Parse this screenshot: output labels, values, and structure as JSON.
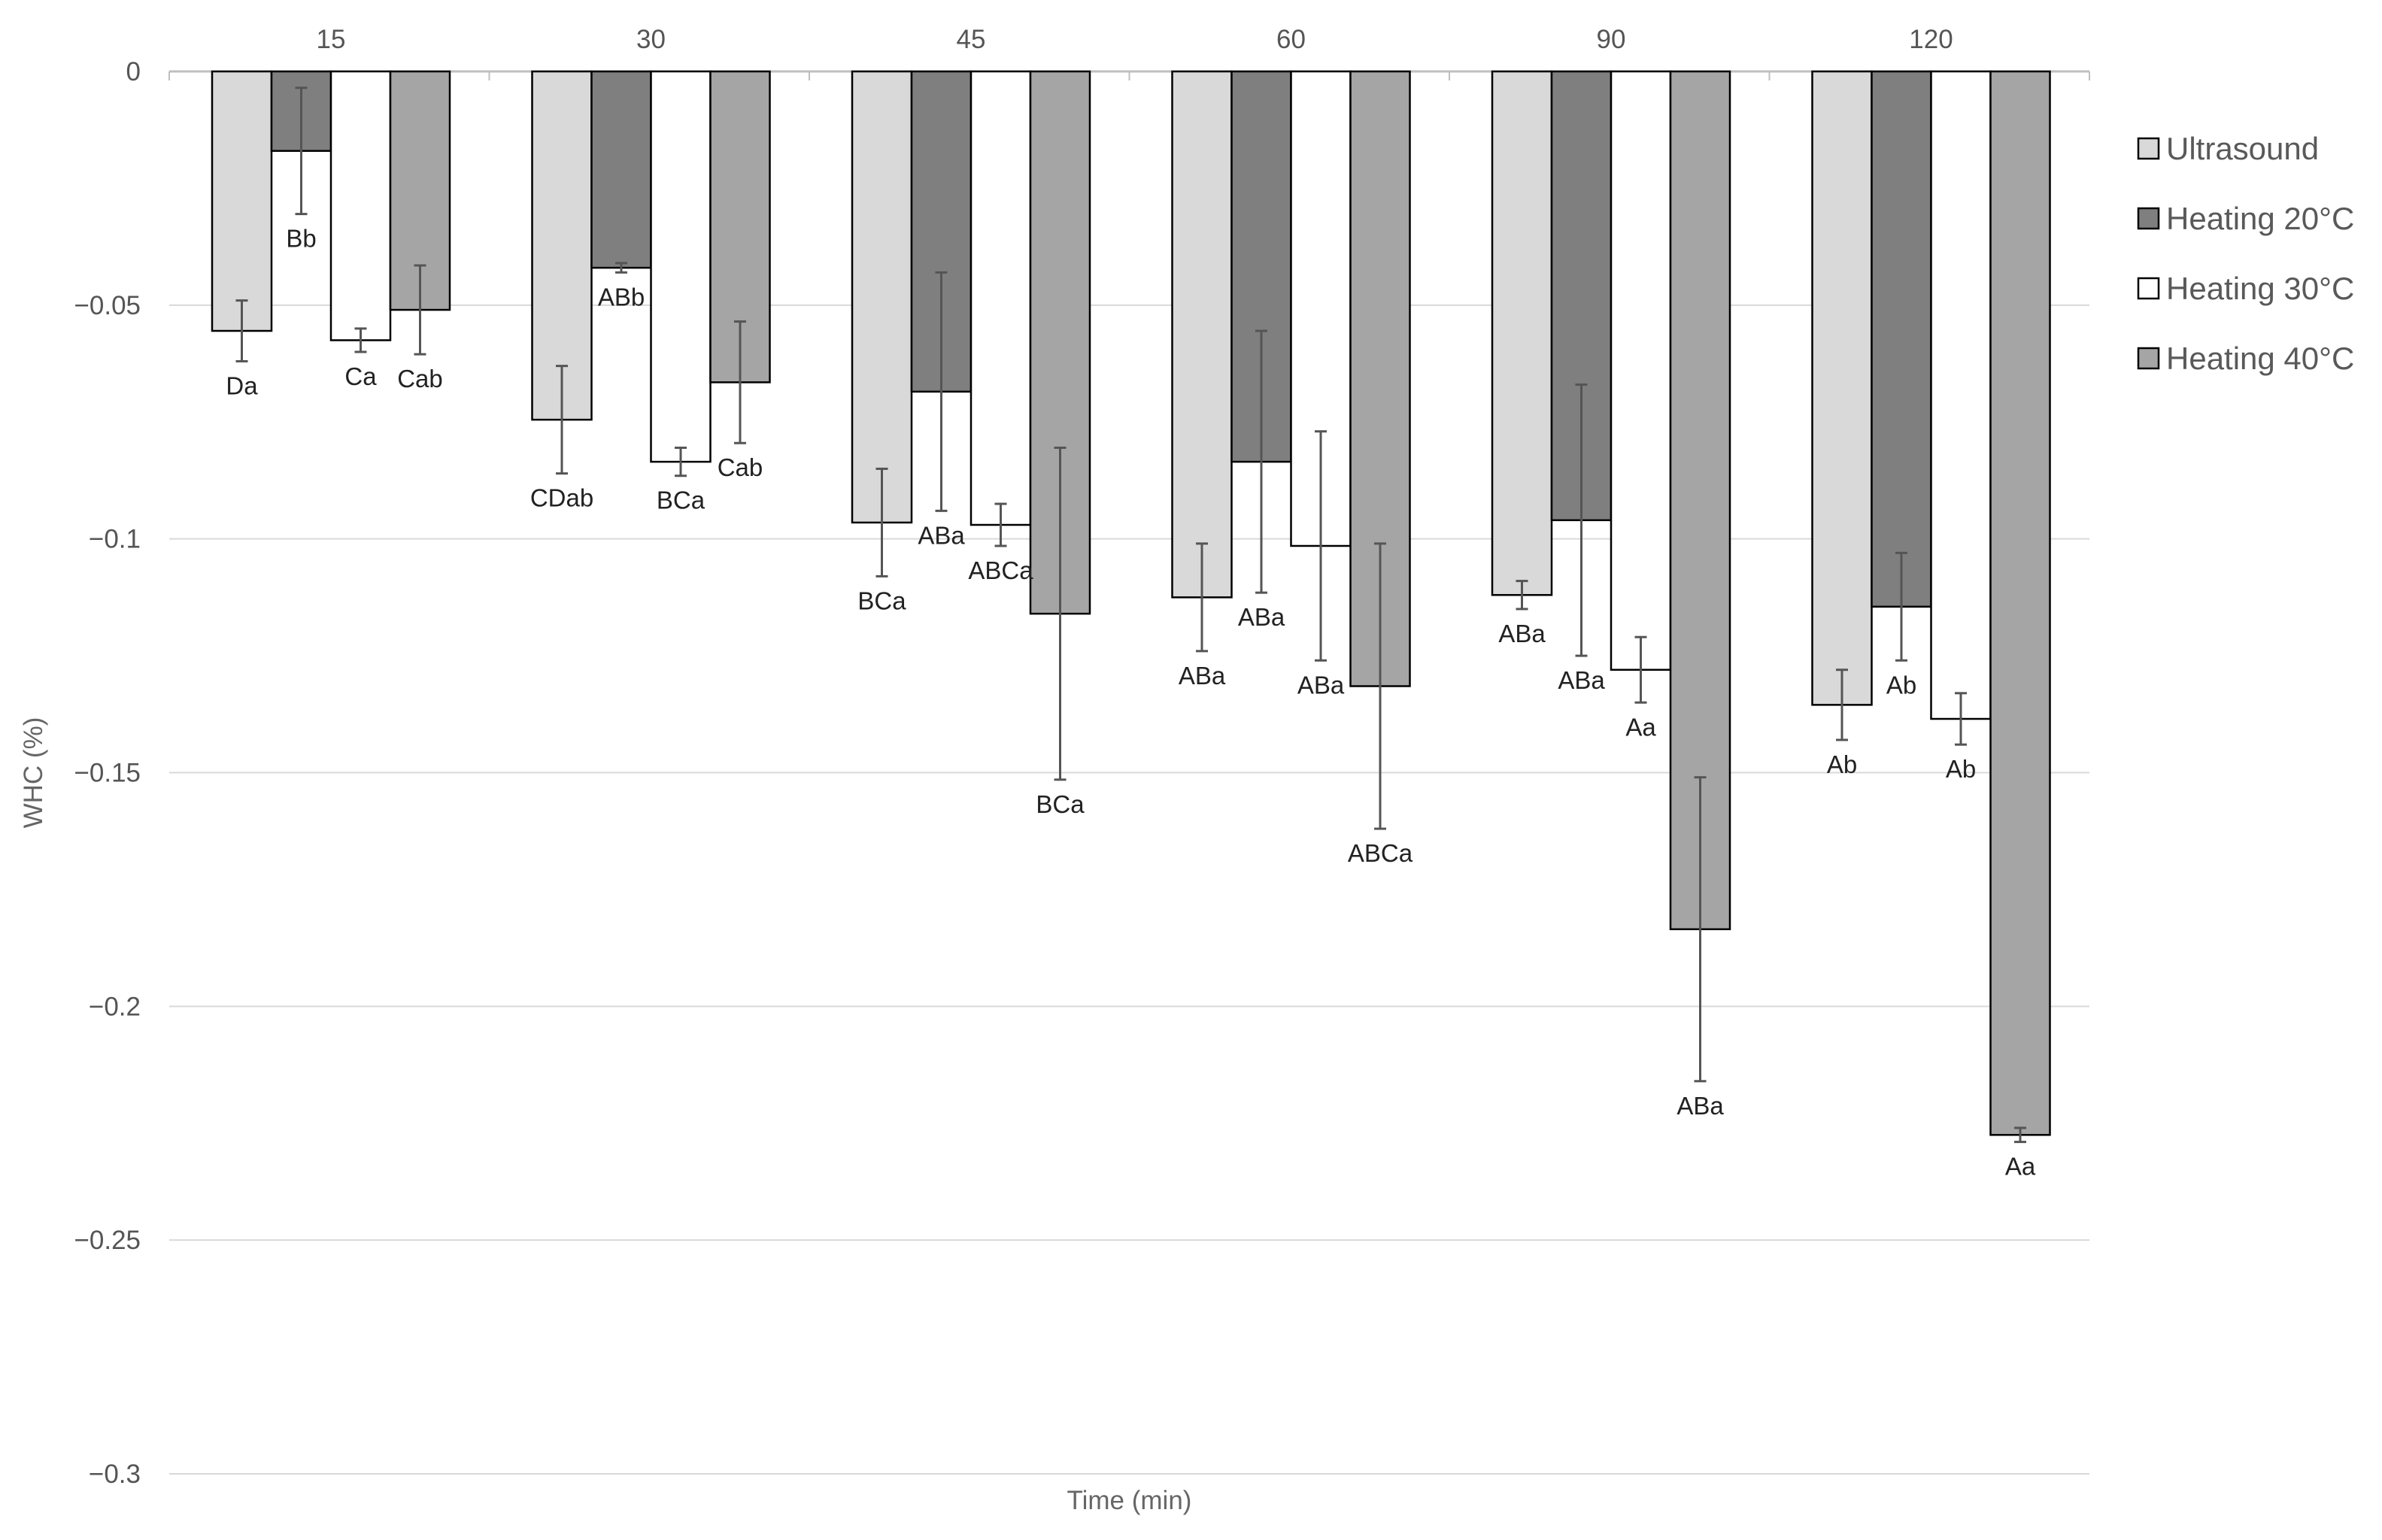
{
  "chart_data": {
    "type": "bar",
    "title": "",
    "xlabel": "Time (min)",
    "ylabel": "WHC (%)",
    "ylim": [
      -0.3,
      0
    ],
    "y_ticks": [
      {
        "value": 0,
        "label": "0"
      },
      {
        "value": -0.05,
        "label": "−0.05"
      },
      {
        "value": -0.1,
        "label": "−0.1"
      },
      {
        "value": -0.15,
        "label": "−0.15"
      },
      {
        "value": -0.2,
        "label": "−0.2"
      },
      {
        "value": -0.25,
        "label": "−0.25"
      },
      {
        "value": -0.3,
        "label": "−0.3"
      }
    ],
    "grid": true,
    "legend_position": "right",
    "categories": [
      "15",
      "30",
      "45",
      "60",
      "90",
      "120"
    ],
    "series": [
      {
        "name": "Ultrasound",
        "color": "#d9d9d9",
        "values": [
          -0.0555,
          -0.0745,
          -0.0965,
          -0.1125,
          -0.112,
          -0.1355
        ],
        "errors": [
          0.0065,
          0.0115,
          0.0115,
          0.0115,
          0.003,
          0.0075
        ],
        "labels": [
          "Da",
          "CDab",
          "BCa",
          "ABa",
          "ABa",
          "Ab"
        ]
      },
      {
        "name": "Heating 20°C",
        "color": "#7f7f7f",
        "values": [
          -0.017,
          -0.042,
          -0.0685,
          -0.0835,
          -0.096,
          -0.1145
        ],
        "errors": [
          0.0135,
          0.001,
          0.0255,
          0.028,
          0.029,
          0.0115
        ],
        "labels": [
          "Bb",
          "ABb",
          "ABa",
          "ABa",
          "ABa",
          "Ab"
        ]
      },
      {
        "name": "Heating 30°C",
        "color": "#ffffff",
        "values": [
          -0.0575,
          -0.0835,
          -0.097,
          -0.1015,
          -0.128,
          -0.1385
        ],
        "errors": [
          0.0025,
          0.003,
          0.0045,
          0.0245,
          0.007,
          0.0055
        ],
        "labels": [
          "Ca",
          "BCa",
          "ABCa",
          "ABa",
          "Aa",
          "Ab"
        ]
      },
      {
        "name": "Heating 40°C",
        "color": "#a5a5a5",
        "values": [
          -0.051,
          -0.0665,
          -0.116,
          -0.1315,
          -0.1835,
          -0.2275
        ],
        "errors": [
          0.0095,
          0.013,
          0.0355,
          0.0305,
          0.0325,
          0.0015
        ],
        "labels": [
          "Cab",
          "Cab",
          "BCa",
          "ABCa",
          "ABa",
          "Aa"
        ]
      }
    ]
  }
}
